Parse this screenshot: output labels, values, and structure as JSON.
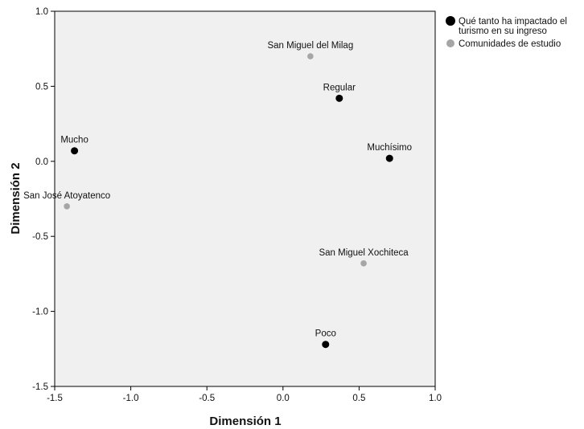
{
  "chart_data": {
    "type": "scatter",
    "xlabel": "Dimensión 1",
    "ylabel": "Dimensión 2",
    "xlim": [
      -1.5,
      1.0
    ],
    "ylim": [
      -1.5,
      1.0
    ],
    "xticks": [
      "-1.5",
      "-1.0",
      "-0.5",
      "0.0",
      "0.5",
      "1.0"
    ],
    "yticks": [
      "-1.5",
      "-1.0",
      "-0.5",
      "0.0",
      "0.5",
      "1.0"
    ],
    "grid": false,
    "legend_position": "right",
    "series": [
      {
        "name": "Qué tanto ha impactado el turismo en su ingreso",
        "name_lines": [
          "Qué tanto ha impactado el",
          "turismo en su ingreso"
        ],
        "color": "#000000",
        "points": [
          {
            "label": "Mucho",
            "x": -1.37,
            "y": 0.07
          },
          {
            "label": "Regular",
            "x": 0.37,
            "y": 0.42
          },
          {
            "label": "Muchísimo",
            "x": 0.7,
            "y": 0.02
          },
          {
            "label": "Poco",
            "x": 0.28,
            "y": -1.22
          }
        ]
      },
      {
        "name": "Comunidades de estudio",
        "name_lines": [
          "Comunidades de estudio"
        ],
        "color": "#a6a6a6",
        "points": [
          {
            "label": "San Miguel del Milag",
            "x": 0.18,
            "y": 0.7
          },
          {
            "label": "San José Atoyatenco",
            "x": -1.42,
            "y": -0.3
          },
          {
            "label": "San Miguel Xochiteca",
            "x": 0.53,
            "y": -0.68
          }
        ]
      }
    ]
  }
}
